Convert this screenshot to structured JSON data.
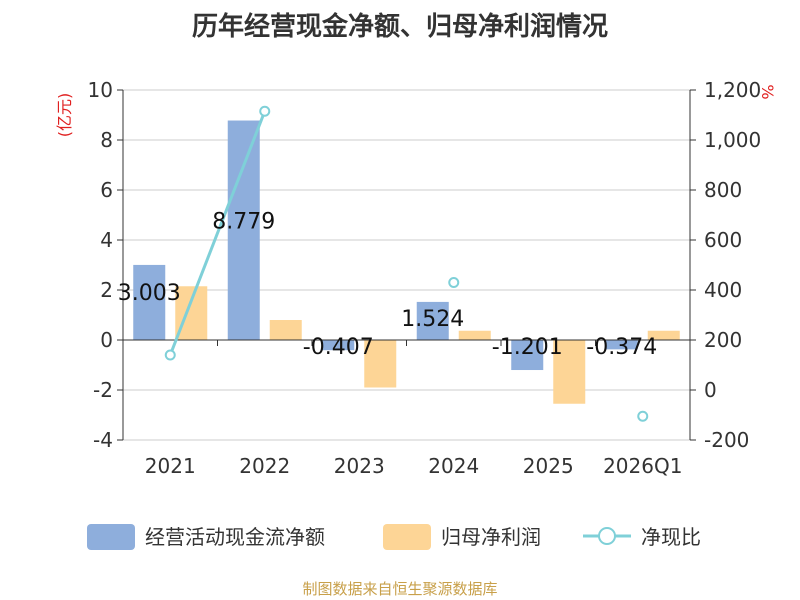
{
  "title": "历年经营现金净额、归母净利润情况",
  "footer": "制图数据来自恒生聚源数据库",
  "chart_data": {
    "type": "bar",
    "categories": [
      "2021",
      "2022",
      "2023",
      "2024",
      "2025",
      "2026Q1"
    ],
    "series": [
      {
        "name": "经营活动现金流净额",
        "type": "bar",
        "axis": "left",
        "color": "#8eaedc",
        "values": [
          3.003,
          8.779,
          -0.407,
          1.524,
          -1.201,
          -0.374
        ],
        "labels": [
          "3.003",
          "8.779",
          "-0.407",
          "1.524",
          "-1.201",
          "-0.374"
        ]
      },
      {
        "name": "归母净利润",
        "type": "bar",
        "axis": "left",
        "color": "#fdd596",
        "values": [
          2.15,
          0.8,
          -1.9,
          0.37,
          -2.55,
          0.37
        ]
      },
      {
        "name": "净现比",
        "type": "line",
        "axis": "right",
        "color": "#7fd0d8",
        "values": [
          140,
          1115,
          null,
          430,
          null,
          -105
        ]
      }
    ],
    "y_left": {
      "label": "(亿元)",
      "min": -4,
      "max": 10,
      "step": 2,
      "ticks": [
        "-4",
        "-2",
        "0",
        "2",
        "4",
        "6",
        "8",
        "10"
      ]
    },
    "y_right": {
      "label": "%",
      "min": -200,
      "max": 1200,
      "step": 200,
      "ticks": [
        "-200",
        "0",
        "200",
        "400",
        "600",
        "800",
        "1,000",
        "1,200"
      ]
    },
    "grid": true,
    "legend": "bottom"
  }
}
